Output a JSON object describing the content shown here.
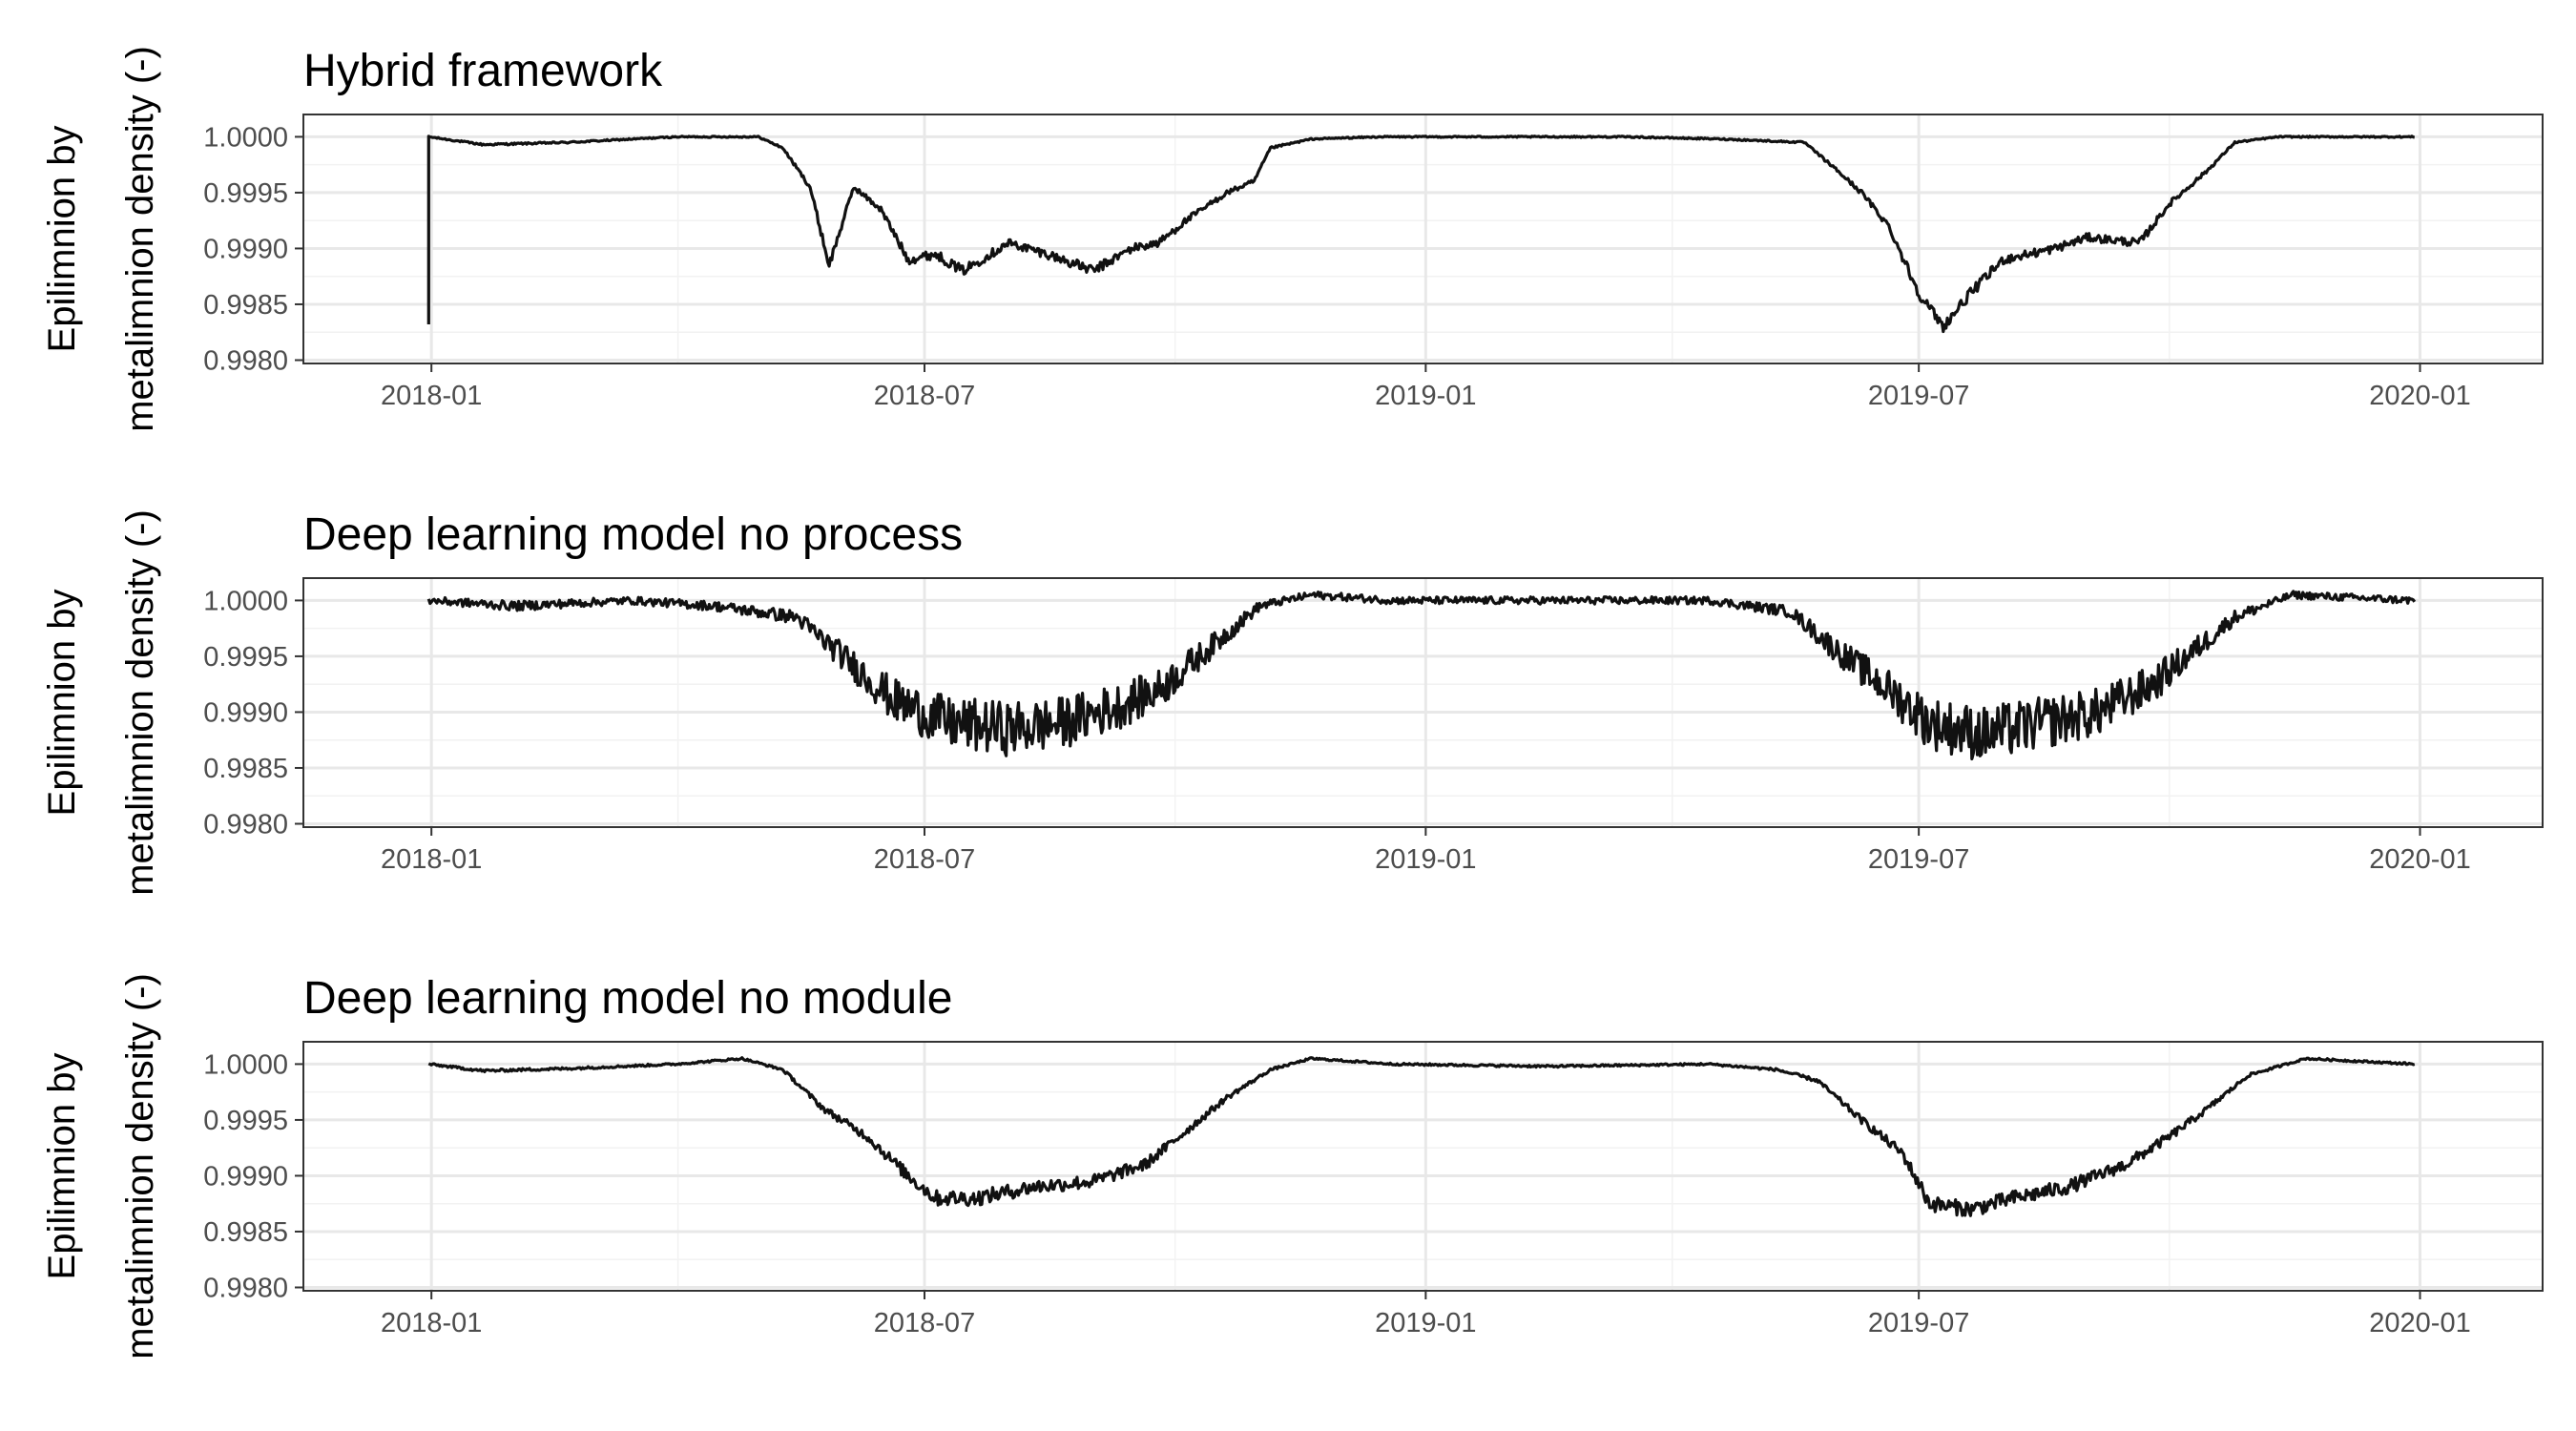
{
  "chart_data": [
    {
      "type": "line",
      "title": "Hybrid framework",
      "ylabel": [
        "Epilimnion by",
        "metalimnion density (-)"
      ],
      "xlabel": "",
      "x_ticks": [
        "2018-01",
        "2018-07",
        "2019-01",
        "2019-07",
        "2020-01"
      ],
      "y_ticks": [
        "0.9980",
        "0.9985",
        "0.9990",
        "0.9995",
        "1.0000"
      ],
      "xlim": [
        "2017-11-15",
        "2020-02-15"
      ],
      "ylim": [
        0.99797,
        1.0002
      ],
      "grid": true,
      "legend": "none",
      "series": [
        {
          "color": "#111111",
          "noise": 4e-05,
          "spike": {
            "date": "2017-12-31",
            "value": 0.99832
          },
          "points": [
            [
              "2017-12-31",
              1.0
            ],
            [
              "2018-01-20",
              0.99993
            ],
            [
              "2018-02-20",
              0.99995
            ],
            [
              "2018-04-01",
              1.0
            ],
            [
              "2018-05-01",
              1.0
            ],
            [
              "2018-05-10",
              0.9999
            ],
            [
              "2018-05-20",
              0.99955
            ],
            [
              "2018-05-27",
              0.99885
            ],
            [
              "2018-06-05",
              0.99955
            ],
            [
              "2018-06-15",
              0.99935
            ],
            [
              "2018-06-25",
              0.9989
            ],
            [
              "2018-07-05",
              0.99895
            ],
            [
              "2018-07-15",
              0.9988
            ],
            [
              "2018-08-01",
              0.99905
            ],
            [
              "2018-08-15",
              0.99895
            ],
            [
              "2018-09-01",
              0.9988
            ],
            [
              "2018-09-15",
              0.999
            ],
            [
              "2018-09-25",
              0.99905
            ],
            [
              "2018-10-05",
              0.99925
            ],
            [
              "2018-10-20",
              0.9995
            ],
            [
              "2018-10-30",
              0.9996
            ],
            [
              "2018-11-05",
              0.9999
            ],
            [
              "2018-11-20",
              0.99998
            ],
            [
              "2018-12-15",
              1.0
            ],
            [
              "2019-03-15",
              1.0
            ],
            [
              "2019-04-20",
              0.99998
            ],
            [
              "2019-05-20",
              0.99995
            ],
            [
              "2019-06-01",
              0.9997
            ],
            [
              "2019-06-10",
              0.9995
            ],
            [
              "2019-06-20",
              0.9992
            ],
            [
              "2019-07-01",
              0.9986
            ],
            [
              "2019-07-10",
              0.9983
            ],
            [
              "2019-07-20",
              0.9986
            ],
            [
              "2019-08-01",
              0.9989
            ],
            [
              "2019-08-20",
              0.999
            ],
            [
              "2019-09-01",
              0.9991
            ],
            [
              "2019-09-20",
              0.99905
            ],
            [
              "2019-10-01",
              0.9994
            ],
            [
              "2019-10-15",
              0.9997
            ],
            [
              "2019-10-25",
              0.99995
            ],
            [
              "2019-11-10",
              1.0
            ],
            [
              "2019-12-30",
              1.0
            ]
          ]
        }
      ]
    },
    {
      "type": "line",
      "title": "Deep learning model no process",
      "ylabel": [
        "Epilimnion by",
        "metalimnion density (-)"
      ],
      "xlabel": "",
      "x_ticks": [
        "2018-01",
        "2018-07",
        "2019-01",
        "2019-07",
        "2020-01"
      ],
      "y_ticks": [
        "0.9980",
        "0.9985",
        "0.9990",
        "0.9995",
        "1.0000"
      ],
      "xlim": [
        "2017-11-15",
        "2020-02-15"
      ],
      "ylim": [
        0.99797,
        1.0002
      ],
      "grid": true,
      "legend": "none",
      "series": [
        {
          "color": "#111111",
          "noise": 0.00022,
          "spike": null,
          "points": [
            [
              "2017-12-31",
              1.0
            ],
            [
              "2018-02-01",
              0.99995
            ],
            [
              "2018-03-15",
              1.0
            ],
            [
              "2018-04-15",
              0.99995
            ],
            [
              "2018-05-15",
              0.99985
            ],
            [
              "2018-06-01",
              0.9995
            ],
            [
              "2018-06-20",
              0.9991
            ],
            [
              "2018-07-10",
              0.9989
            ],
            [
              "2018-08-01",
              0.99885
            ],
            [
              "2018-08-20",
              0.9989
            ],
            [
              "2018-09-10",
              0.99905
            ],
            [
              "2018-09-25",
              0.9992
            ],
            [
              "2018-10-15",
              0.9996
            ],
            [
              "2018-11-01",
              0.99995
            ],
            [
              "2018-11-20",
              1.00005
            ],
            [
              "2018-12-20",
              1.0
            ],
            [
              "2019-03-15",
              1.0
            ],
            [
              "2019-04-15",
              1.0
            ],
            [
              "2019-05-15",
              0.9999
            ],
            [
              "2019-06-01",
              0.99955
            ],
            [
              "2019-06-20",
              0.9992
            ],
            [
              "2019-07-05",
              0.9989
            ],
            [
              "2019-07-25",
              0.9988
            ],
            [
              "2019-08-15",
              0.9989
            ],
            [
              "2019-09-05",
              0.999
            ],
            [
              "2019-09-25",
              0.99925
            ],
            [
              "2019-10-10",
              0.99955
            ],
            [
              "2019-10-25",
              0.99985
            ],
            [
              "2019-11-15",
              1.00005
            ],
            [
              "2019-12-30",
              1.0
            ]
          ]
        }
      ]
    },
    {
      "type": "line",
      "title": "Deep learning model no module",
      "ylabel": [
        "Epilimnion by",
        "metalimnion density (-)"
      ],
      "xlabel": "",
      "x_ticks": [
        "2018-01",
        "2018-07",
        "2019-01",
        "2019-07",
        "2020-01"
      ],
      "y_ticks": [
        "0.9980",
        "0.9985",
        "0.9990",
        "0.9995",
        "1.0000"
      ],
      "xlim": [
        "2017-11-15",
        "2020-02-15"
      ],
      "ylim": [
        0.99797,
        1.0002
      ],
      "grid": true,
      "legend": "none",
      "series": [
        {
          "color": "#111111",
          "noise": 6e-05,
          "spike": null,
          "points": [
            [
              "2017-12-31",
              1.0
            ],
            [
              "2018-01-20",
              0.99994
            ],
            [
              "2018-02-20",
              0.99996
            ],
            [
              "2018-04-01",
              1.0
            ],
            [
              "2018-04-25",
              1.00005
            ],
            [
              "2018-05-10",
              0.99995
            ],
            [
              "2018-05-25",
              0.9996
            ],
            [
              "2018-06-10",
              0.99935
            ],
            [
              "2018-06-25",
              0.999
            ],
            [
              "2018-07-05",
              0.9988
            ],
            [
              "2018-07-20",
              0.9988
            ],
            [
              "2018-08-10",
              0.9989
            ],
            [
              "2018-09-01",
              0.99895
            ],
            [
              "2018-09-20",
              0.9991
            ],
            [
              "2018-10-05",
              0.9994
            ],
            [
              "2018-10-20",
              0.9997
            ],
            [
              "2018-11-05",
              0.99995
            ],
            [
              "2018-11-20",
              1.00005
            ],
            [
              "2018-12-20",
              1.0
            ],
            [
              "2019-02-15",
              0.99998
            ],
            [
              "2019-04-15",
              1.0
            ],
            [
              "2019-05-10",
              0.99995
            ],
            [
              "2019-05-25",
              0.99985
            ],
            [
              "2019-06-10",
              0.9995
            ],
            [
              "2019-06-25",
              0.9992
            ],
            [
              "2019-07-05",
              0.99875
            ],
            [
              "2019-07-20",
              0.9987
            ],
            [
              "2019-08-05",
              0.9988
            ],
            [
              "2019-08-25",
              0.9989
            ],
            [
              "2019-09-15",
              0.9991
            ],
            [
              "2019-10-01",
              0.99935
            ],
            [
              "2019-10-15",
              0.9996
            ],
            [
              "2019-10-30",
              0.9999
            ],
            [
              "2019-11-20",
              1.00005
            ],
            [
              "2019-12-30",
              1.0
            ]
          ]
        }
      ]
    }
  ]
}
